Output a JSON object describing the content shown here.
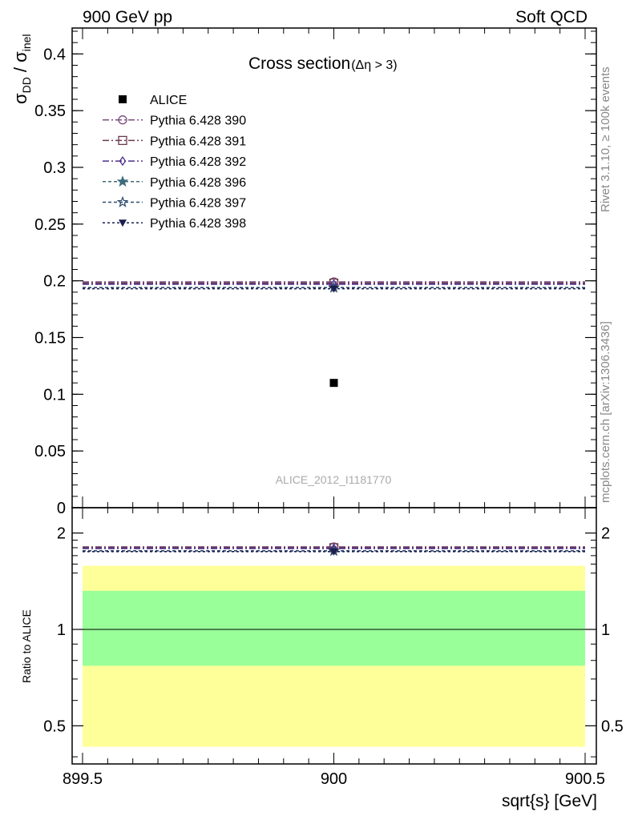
{
  "header": {
    "left": "900 GeV pp",
    "right": "Soft QCD"
  },
  "side_labels": {
    "rivet": "Rivet 3.1.10, ≥ 100k events",
    "mcplots": "mcplots.cern.ch [arXiv:1306.3436]"
  },
  "watermark": "ALICE_2012_I1181770",
  "chart_data": [
    {
      "type": "scatter",
      "title": "Cross section",
      "title_suffix": "(Δη > 3)",
      "ylabel": "σDD / σinel",
      "ylabel_parts": {
        "sigma": "σ",
        "num_sub": "DD",
        "slash": " / ",
        "den_sub": "inel"
      },
      "xlim": [
        899.5,
        900.5
      ],
      "ylim": [
        0,
        0.42
      ],
      "yticks": [
        {
          "v": 0,
          "label": "0"
        },
        {
          "v": 0.05,
          "label": "0.05"
        },
        {
          "v": 0.1,
          "label": "0.1"
        },
        {
          "v": 0.15,
          "label": "0.15"
        },
        {
          "v": 0.2,
          "label": "0.2"
        },
        {
          "v": 0.25,
          "label": "0.25"
        },
        {
          "v": 0.3,
          "label": "0.3"
        },
        {
          "v": 0.35,
          "label": "0.35"
        },
        {
          "v": 0.4,
          "label": "0.4"
        }
      ],
      "legend_position": "top-left",
      "series": [
        {
          "name": "ALICE",
          "x": [
            900
          ],
          "y": [
            0.11
          ],
          "style": "data",
          "marker": "square-filled",
          "color": "#000000"
        },
        {
          "name": "Pythia 6.428 390",
          "x": [
            900
          ],
          "y": [
            0.199
          ],
          "marker": "circle-open",
          "dash": "8,3,2,3",
          "color": "#7b4c7e"
        },
        {
          "name": "Pythia 6.428 391",
          "x": [
            900
          ],
          "y": [
            0.198
          ],
          "marker": "square-open",
          "dash": "8,3,2,3",
          "color": "#6b3a4e"
        },
        {
          "name": "Pythia 6.428 392",
          "x": [
            900
          ],
          "y": [
            0.197
          ],
          "marker": "diamond-open",
          "dash": "8,3,2,3",
          "color": "#4e2f8c"
        },
        {
          "name": "Pythia 6.428 396",
          "x": [
            900
          ],
          "y": [
            0.194
          ],
          "marker": "star-filled",
          "dash": "4,3",
          "color": "#3d6b7a"
        },
        {
          "name": "Pythia 6.428 397",
          "x": [
            900
          ],
          "y": [
            0.194
          ],
          "marker": "star-open",
          "dash": "4,3",
          "color": "#2d4a6e"
        },
        {
          "name": "Pythia 6.428 398",
          "x": [
            900
          ],
          "y": [
            0.193
          ],
          "marker": "triangle-down-filled",
          "dash": "3,3",
          "color": "#1b1f4e"
        }
      ]
    },
    {
      "type": "scatter",
      "ylabel": "Ratio to ALICE",
      "xlabel": "sqrt{s} [GeV]",
      "xlim": [
        899.5,
        900.5
      ],
      "ylim": [
        0.38,
        2.4
      ],
      "log_scale_y": true,
      "xticks": [
        {
          "v": 899.5,
          "label": "899.5"
        },
        {
          "v": 900,
          "label": "900"
        },
        {
          "v": 900.5,
          "label": "900.5"
        }
      ],
      "yticks": [
        {
          "v": 0.5,
          "label": "0.5"
        },
        {
          "v": 1,
          "label": "1"
        },
        {
          "v": 2,
          "label": "2"
        }
      ],
      "bands": [
        {
          "name": "2-sigma",
          "low": 0.43,
          "high": 1.58,
          "color": "#ffff99"
        },
        {
          "name": "1-sigma",
          "low": 0.77,
          "high": 1.32,
          "color": "#99ff99"
        }
      ],
      "reference": 1,
      "series": [
        {
          "name": "Pythia 6.428 390",
          "x": [
            900
          ],
          "y": [
            1.81
          ]
        },
        {
          "name": "Pythia 6.428 391",
          "x": [
            900
          ],
          "y": [
            1.8
          ]
        },
        {
          "name": "Pythia 6.428 392",
          "x": [
            900
          ],
          "y": [
            1.79
          ]
        },
        {
          "name": "Pythia 6.428 396",
          "x": [
            900
          ],
          "y": [
            1.76
          ]
        },
        {
          "name": "Pythia 6.428 397",
          "x": [
            900
          ],
          "y": [
            1.76
          ]
        },
        {
          "name": "Pythia 6.428 398",
          "x": [
            900
          ],
          "y": [
            1.75
          ]
        }
      ]
    }
  ]
}
